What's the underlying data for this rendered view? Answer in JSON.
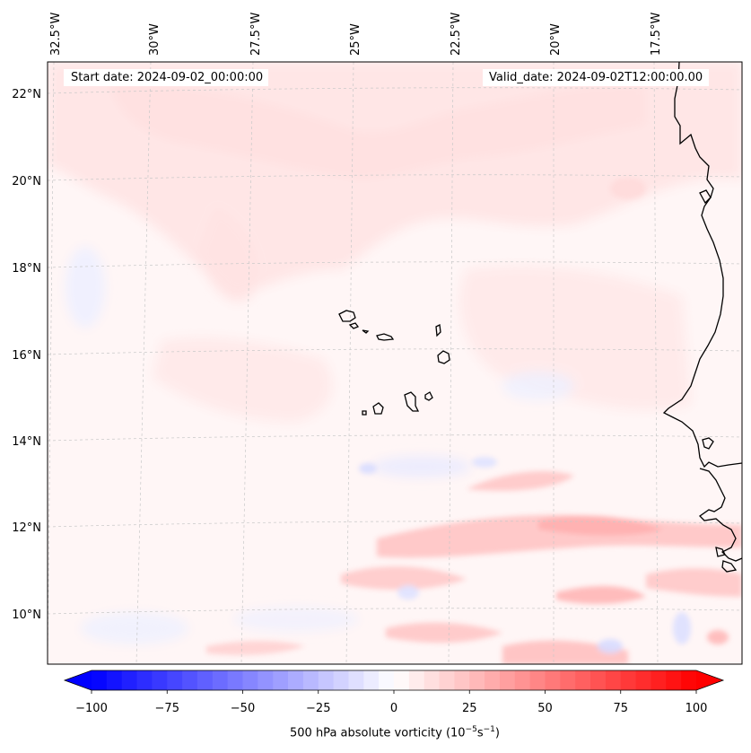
{
  "map": {
    "start_date_text": "Start date: 2024-09-02_00:00:00",
    "valid_date_text": "Valid_date: 2024-09-02T12:00:00.00",
    "region": "Eastern tropical Atlantic, Cape Verde islands and West African coast",
    "longitude_labels": [
      "32.5°W",
      "30°W",
      "27.5°W",
      "25°W",
      "22.5°W",
      "20°W",
      "17.5°W"
    ],
    "latitude_labels": [
      "22°N",
      "20°N",
      "18°N",
      "16°N",
      "14°N",
      "12°N",
      "10°N"
    ],
    "features": [
      "coastline",
      "cape-verde-islands",
      "gridlines",
      "vorticity-contours"
    ]
  },
  "colorbar": {
    "label_prefix": "500 hPa absolute vorticity (10",
    "label_exp1": "−5",
    "label_mid": "s",
    "label_exp2": "−1",
    "label_suffix": ")",
    "min": -100,
    "max": 100,
    "step": 5,
    "extend": "both",
    "tick_labels": [
      "−100",
      "−75",
      "−50",
      "−25",
      "0",
      "25",
      "50",
      "75",
      "100"
    ],
    "colors": {
      "negative_end": "#0000ff",
      "zero": "#ffffff",
      "positive_end": "#ff0000"
    }
  }
}
